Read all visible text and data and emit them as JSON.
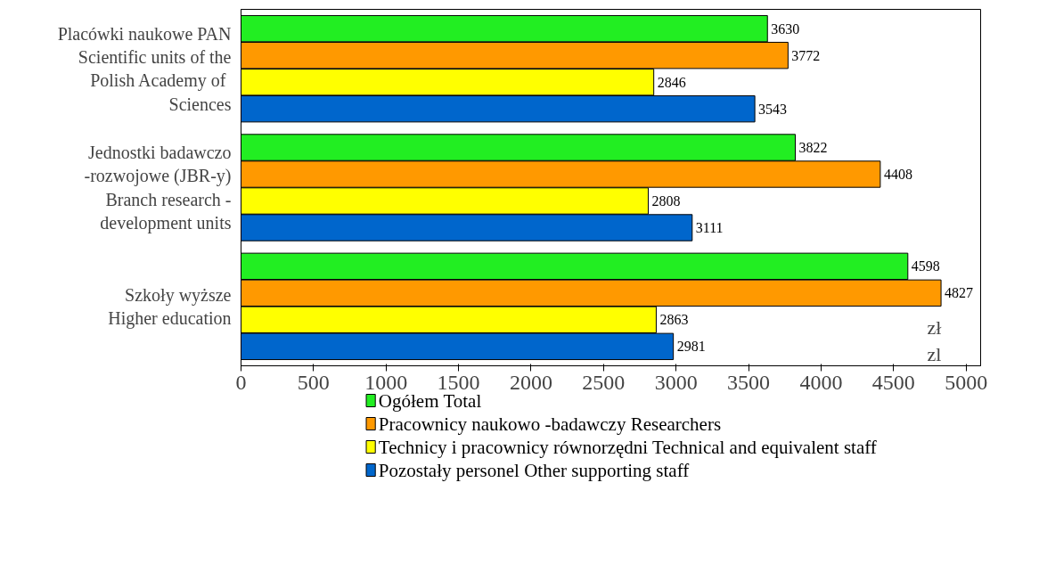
{
  "chart_data": {
    "type": "bar",
    "orientation": "horizontal",
    "categories": [
      "Placówki naukowe PAN\nScientific units of the\nPolish  Academy of\nSciences",
      "Jednostki badawczo\n-rozwojowe (JBR-y)\nBranch research -\ndevelopment units",
      "Szkoły wyższe\nHigher education"
    ],
    "series": [
      {
        "name": "Ogółem  Total",
        "color": "#22ee22",
        "values": [
          3630,
          3822,
          4598
        ]
      },
      {
        "name": "Pracownicy naukowo -badawczy  Researchers",
        "color": "#ff9900",
        "values": [
          3772,
          4408,
          4827
        ]
      },
      {
        "name": "Technicy i pracownicy równorzędni  Technical and equivalent staff",
        "color": "#ffff00",
        "values": [
          2846,
          2808,
          2863
        ]
      },
      {
        "name": "Pozostały personel  Other supporting staff",
        "color": "#0066cc",
        "values": [
          3543,
          3111,
          2981
        ]
      }
    ],
    "xlim": [
      0,
      5100
    ],
    "xticks": [
      0,
      500,
      1000,
      1500,
      2000,
      2500,
      3000,
      3500,
      4000,
      4500,
      5000
    ],
    "xlabel": "zł\nzl",
    "data_labels": true,
    "grid": false,
    "legend": "bottom"
  }
}
